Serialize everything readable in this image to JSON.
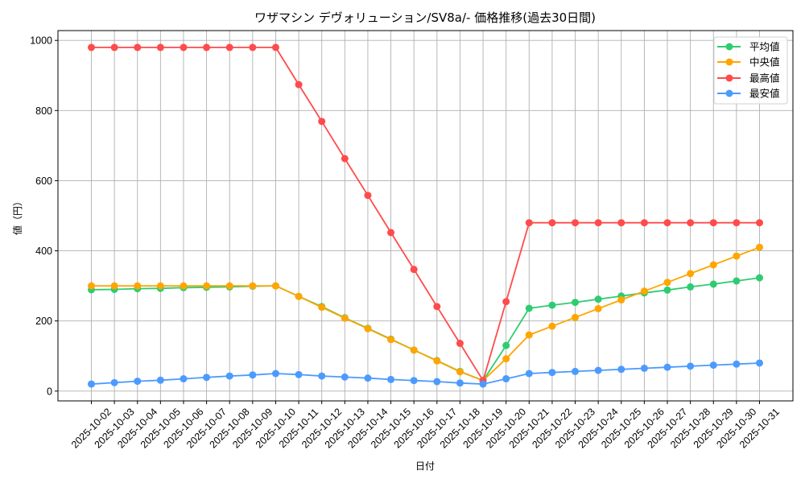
{
  "chart_data": {
    "type": "line",
    "title": "ワザマシン デヴォリューション/SV8a/- 価格推移(過去30日間)",
    "xlabel": "日付",
    "ylabel": "値（円）",
    "ylim": [
      -28,
      1028
    ],
    "yticks": [
      0,
      200,
      400,
      600,
      800,
      1000
    ],
    "grid": true,
    "legend_position": "upper right",
    "categories": [
      "2025-10-02",
      "2025-10-03",
      "2025-10-04",
      "2025-10-05",
      "2025-10-06",
      "2025-10-07",
      "2025-10-08",
      "2025-10-09",
      "2025-10-10",
      "2025-10-11",
      "2025-10-12",
      "2025-10-13",
      "2025-10-14",
      "2025-10-15",
      "2025-10-16",
      "2025-10-17",
      "2025-10-18",
      "2025-10-19",
      "2025-10-20",
      "2025-10-21",
      "2025-10-22",
      "2025-10-23",
      "2025-10-24",
      "2025-10-25",
      "2025-10-26",
      "2025-10-27",
      "2025-10-28",
      "2025-10-29",
      "2025-10-30",
      "2025-10-31"
    ],
    "series": [
      {
        "name": "平均値",
        "color": "#2ecc71",
        "values": [
          289,
          290,
          292,
          293,
          295,
          296,
          297,
          299,
          300,
          270,
          241,
          209,
          179,
          148,
          117,
          87,
          56,
          30,
          130,
          236,
          245,
          253,
          262,
          271,
          280,
          288,
          297,
          305,
          314,
          323
        ]
      },
      {
        "name": "中央値",
        "color": "#ffa500",
        "values": [
          300,
          300,
          300,
          300,
          300,
          300,
          300,
          300,
          300,
          270,
          239,
          208,
          178,
          147,
          117,
          86,
          55,
          30,
          92,
          160,
          185,
          210,
          235,
          260,
          285,
          310,
          335,
          360,
          385,
          410
        ]
      },
      {
        "name": "最高値",
        "color": "#ff4b4b",
        "values": [
          980,
          980,
          980,
          980,
          980,
          980,
          980,
          980,
          980,
          874,
          769,
          663,
          558,
          452,
          347,
          241,
          136,
          30,
          255,
          480,
          480,
          480,
          480,
          480,
          480,
          480,
          480,
          480,
          480,
          480
        ]
      },
      {
        "name": "最安値",
        "color": "#4b9bff",
        "values": [
          20,
          24,
          28,
          31,
          35,
          39,
          43,
          46,
          50,
          47,
          43,
          40,
          37,
          33,
          30,
          27,
          23,
          20,
          35,
          50,
          53,
          56,
          59,
          62,
          65,
          68,
          71,
          74,
          77,
          80
        ]
      }
    ]
  }
}
